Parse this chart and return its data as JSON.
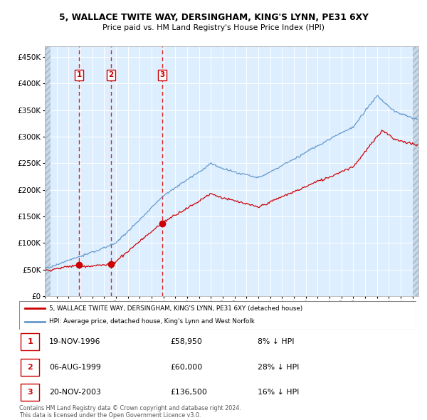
{
  "title1": "5, WALLACE TWITE WAY, DERSINGHAM, KING'S LYNN, PE31 6XY",
  "title2": "Price paid vs. HM Land Registry's House Price Index (HPI)",
  "legend_line1": "5, WALLACE TWITE WAY, DERSINGHAM, KING'S LYNN, PE31 6XY (detached house)",
  "legend_line2": "HPI: Average price, detached house, King's Lynn and West Norfolk",
  "sale_dates": [
    1996.88,
    1999.59,
    2003.89
  ],
  "sale_prices": [
    58950,
    60000,
    136500
  ],
  "sale_labels": [
    "1",
    "2",
    "3"
  ],
  "sale_info": [
    [
      "1",
      "19-NOV-1996",
      "£58,950",
      "8% ↓ HPI"
    ],
    [
      "2",
      "06-AUG-1999",
      "£60,000",
      "28% ↓ HPI"
    ],
    [
      "3",
      "20-NOV-2003",
      "£136,500",
      "16% ↓ HPI"
    ]
  ],
  "footer": "Contains HM Land Registry data © Crown copyright and database right 2024.\nThis data is licensed under the Open Government Licence v3.0.",
  "red_color": "#cc0000",
  "blue_color": "#6699cc",
  "bg_color": "#ddeeff",
  "vline_color": "#dd2222",
  "ylim": [
    0,
    470000
  ],
  "yticks": [
    0,
    50000,
    100000,
    150000,
    200000,
    250000,
    300000,
    350000,
    400000,
    450000
  ],
  "xmin": 1994.0,
  "xmax": 2025.5
}
